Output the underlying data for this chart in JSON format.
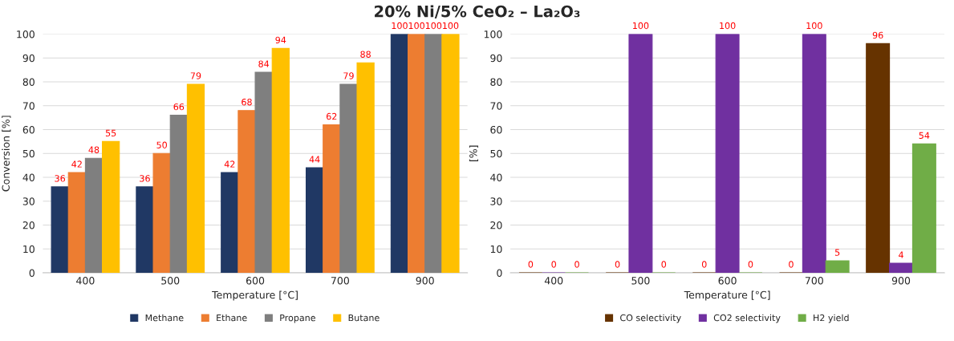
{
  "chart_data": [
    {
      "type": "bar",
      "title": "20% Ni/5% CeO₂ – La₂O₃",
      "xlabel": "Temperature [°C]",
      "ylabel": "Conversion [%]",
      "categories": [
        "400",
        "500",
        "600",
        "700",
        "900"
      ],
      "series": [
        {
          "name": "Methane",
          "color": "#203864",
          "values": [
            36,
            36,
            42,
            44,
            100
          ]
        },
        {
          "name": "Ethane",
          "color": "#ed7d31",
          "values": [
            42,
            50,
            68,
            62,
            100
          ]
        },
        {
          "name": "Propane",
          "color": "#7f7f7f",
          "values": [
            48,
            66,
            84,
            79,
            100
          ]
        },
        {
          "name": "Butane",
          "color": "#ffc000",
          "values": [
            55,
            79,
            94,
            88,
            100
          ]
        }
      ],
      "ylim": [
        0,
        100
      ],
      "yticks": [
        0,
        10,
        20,
        30,
        40,
        50,
        60,
        70,
        80,
        90,
        100
      ],
      "grid": "y",
      "legend": "bottom",
      "data_labels": true
    },
    {
      "type": "bar",
      "xlabel": "Temperature [°C]",
      "ylabel": "[%]",
      "categories": [
        "400",
        "500",
        "600",
        "700",
        "900"
      ],
      "series": [
        {
          "name": "CO selectivity",
          "color": "#663300",
          "values": [
            0,
            0,
            0,
            0,
            96
          ]
        },
        {
          "name": "CO2 selectivity",
          "color": "#7030a0",
          "values": [
            0,
            100,
            100,
            100,
            4
          ]
        },
        {
          "name": "H2 yield",
          "color": "#70ad47",
          "values": [
            0,
            0,
            0,
            5,
            54
          ]
        }
      ],
      "ylim": [
        0,
        100
      ],
      "yticks": [
        0,
        10,
        20,
        30,
        40,
        50,
        60,
        70,
        80,
        90,
        100
      ],
      "grid": "y",
      "legend": "bottom",
      "data_labels": true
    }
  ]
}
